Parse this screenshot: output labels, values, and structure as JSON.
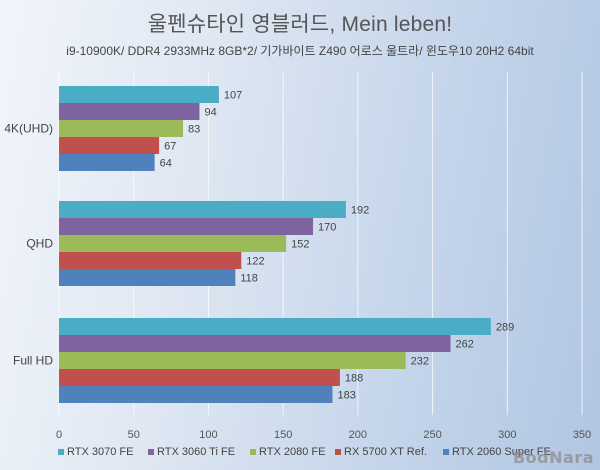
{
  "chart_data": {
    "type": "bar",
    "orientation": "horizontal",
    "title": "울펜슈타인 영블러드, Mein leben!",
    "subtitle": "i9-10900K/ DDR4 2933MHz 8GB*2/ 기가바이트 Z490 어로스 울트라/ 윈도우10 20H2 64bit",
    "categories": [
      "4K(UHD)",
      "QHD",
      "Full HD"
    ],
    "series": [
      {
        "name": "RTX 3070 FE",
        "color": "#4BACC6",
        "values": [
          107,
          192,
          289
        ]
      },
      {
        "name": "RTX 3060 Ti FE",
        "color": "#8064A2",
        "values": [
          94,
          170,
          262
        ]
      },
      {
        "name": "RTX 2080 FE",
        "color": "#9BBB59",
        "values": [
          83,
          152,
          232
        ]
      },
      {
        "name": "RX 5700 XT Ref.",
        "color": "#C0504D",
        "values": [
          67,
          122,
          188
        ]
      },
      {
        "name": "RTX 2060 Super FE",
        "color": "#4F81BD",
        "values": [
          64,
          118,
          183
        ]
      }
    ],
    "xlim": [
      0,
      350
    ],
    "xticks": [
      0,
      50,
      100,
      150,
      200,
      250,
      300,
      350
    ],
    "xlabel": "",
    "ylabel": "",
    "grid": true,
    "legend_position": "bottom"
  },
  "watermark": "BodNara"
}
